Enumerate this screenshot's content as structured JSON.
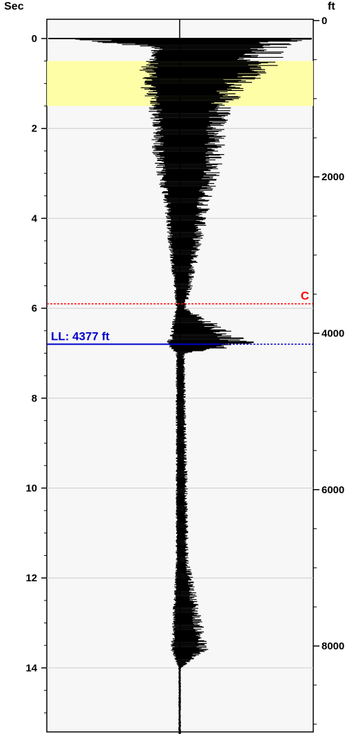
{
  "chart_data": {
    "type": "line",
    "title": "",
    "left_axis": {
      "label": "Sec",
      "range": [
        -0.4,
        15.6
      ],
      "ticks": [
        0,
        2,
        4,
        6,
        8,
        10,
        12,
        14
      ],
      "tick_labels": [
        "0",
        "2",
        "4",
        "6",
        "8",
        "10",
        "12",
        "14"
      ]
    },
    "right_axis": {
      "label": "ft",
      "range": [
        0,
        9200
      ],
      "ticks": [
        0,
        2000,
        4000,
        6000,
        8000
      ],
      "tick_labels": [
        "0",
        "2000",
        "4000",
        "6000",
        "8000"
      ]
    },
    "grid": true,
    "highlight_band": {
      "from_sec": 0.5,
      "to_sec": 1.5,
      "color": "#ffff99"
    },
    "markers": [
      {
        "id": "C",
        "label": "C",
        "sec": 5.9,
        "color": "#ff0000",
        "label_side": "right"
      },
      {
        "id": "LL",
        "label": "LL: 4377 ft",
        "sec": 6.8,
        "color": "#0000cc",
        "label_side": "left"
      }
    ],
    "trace": {
      "name": "",
      "amplitude_envelope": [
        {
          "sec": 0.0,
          "left": 1.0,
          "right": 1.0
        },
        {
          "sec": 0.2,
          "left": 0.2,
          "right": 0.85
        },
        {
          "sec": 0.6,
          "left": 0.3,
          "right": 0.75
        },
        {
          "sec": 1.0,
          "left": 0.31,
          "right": 0.55
        },
        {
          "sec": 1.5,
          "left": 0.24,
          "right": 0.4
        },
        {
          "sec": 2.0,
          "left": 0.22,
          "right": 0.35
        },
        {
          "sec": 2.8,
          "left": 0.2,
          "right": 0.33
        },
        {
          "sec": 3.5,
          "left": 0.13,
          "right": 0.25
        },
        {
          "sec": 4.5,
          "left": 0.09,
          "right": 0.17
        },
        {
          "sec": 5.5,
          "left": 0.05,
          "right": 0.1
        },
        {
          "sec": 6.0,
          "left": 0.03,
          "right": 0.05
        },
        {
          "sec": 6.8,
          "left": 0.1,
          "right": 0.6
        },
        {
          "sec": 7.0,
          "left": 0.03,
          "right": 0.04
        },
        {
          "sec": 9.8,
          "left": 0.03,
          "right": 0.06
        },
        {
          "sec": 11.6,
          "left": 0.03,
          "right": 0.07
        },
        {
          "sec": 13.6,
          "left": 0.07,
          "right": 0.22
        },
        {
          "sec": 14.0,
          "left": 0.01,
          "right": 0.01
        },
        {
          "sec": 15.6,
          "left": 0.01,
          "right": 0.01
        }
      ]
    }
  }
}
